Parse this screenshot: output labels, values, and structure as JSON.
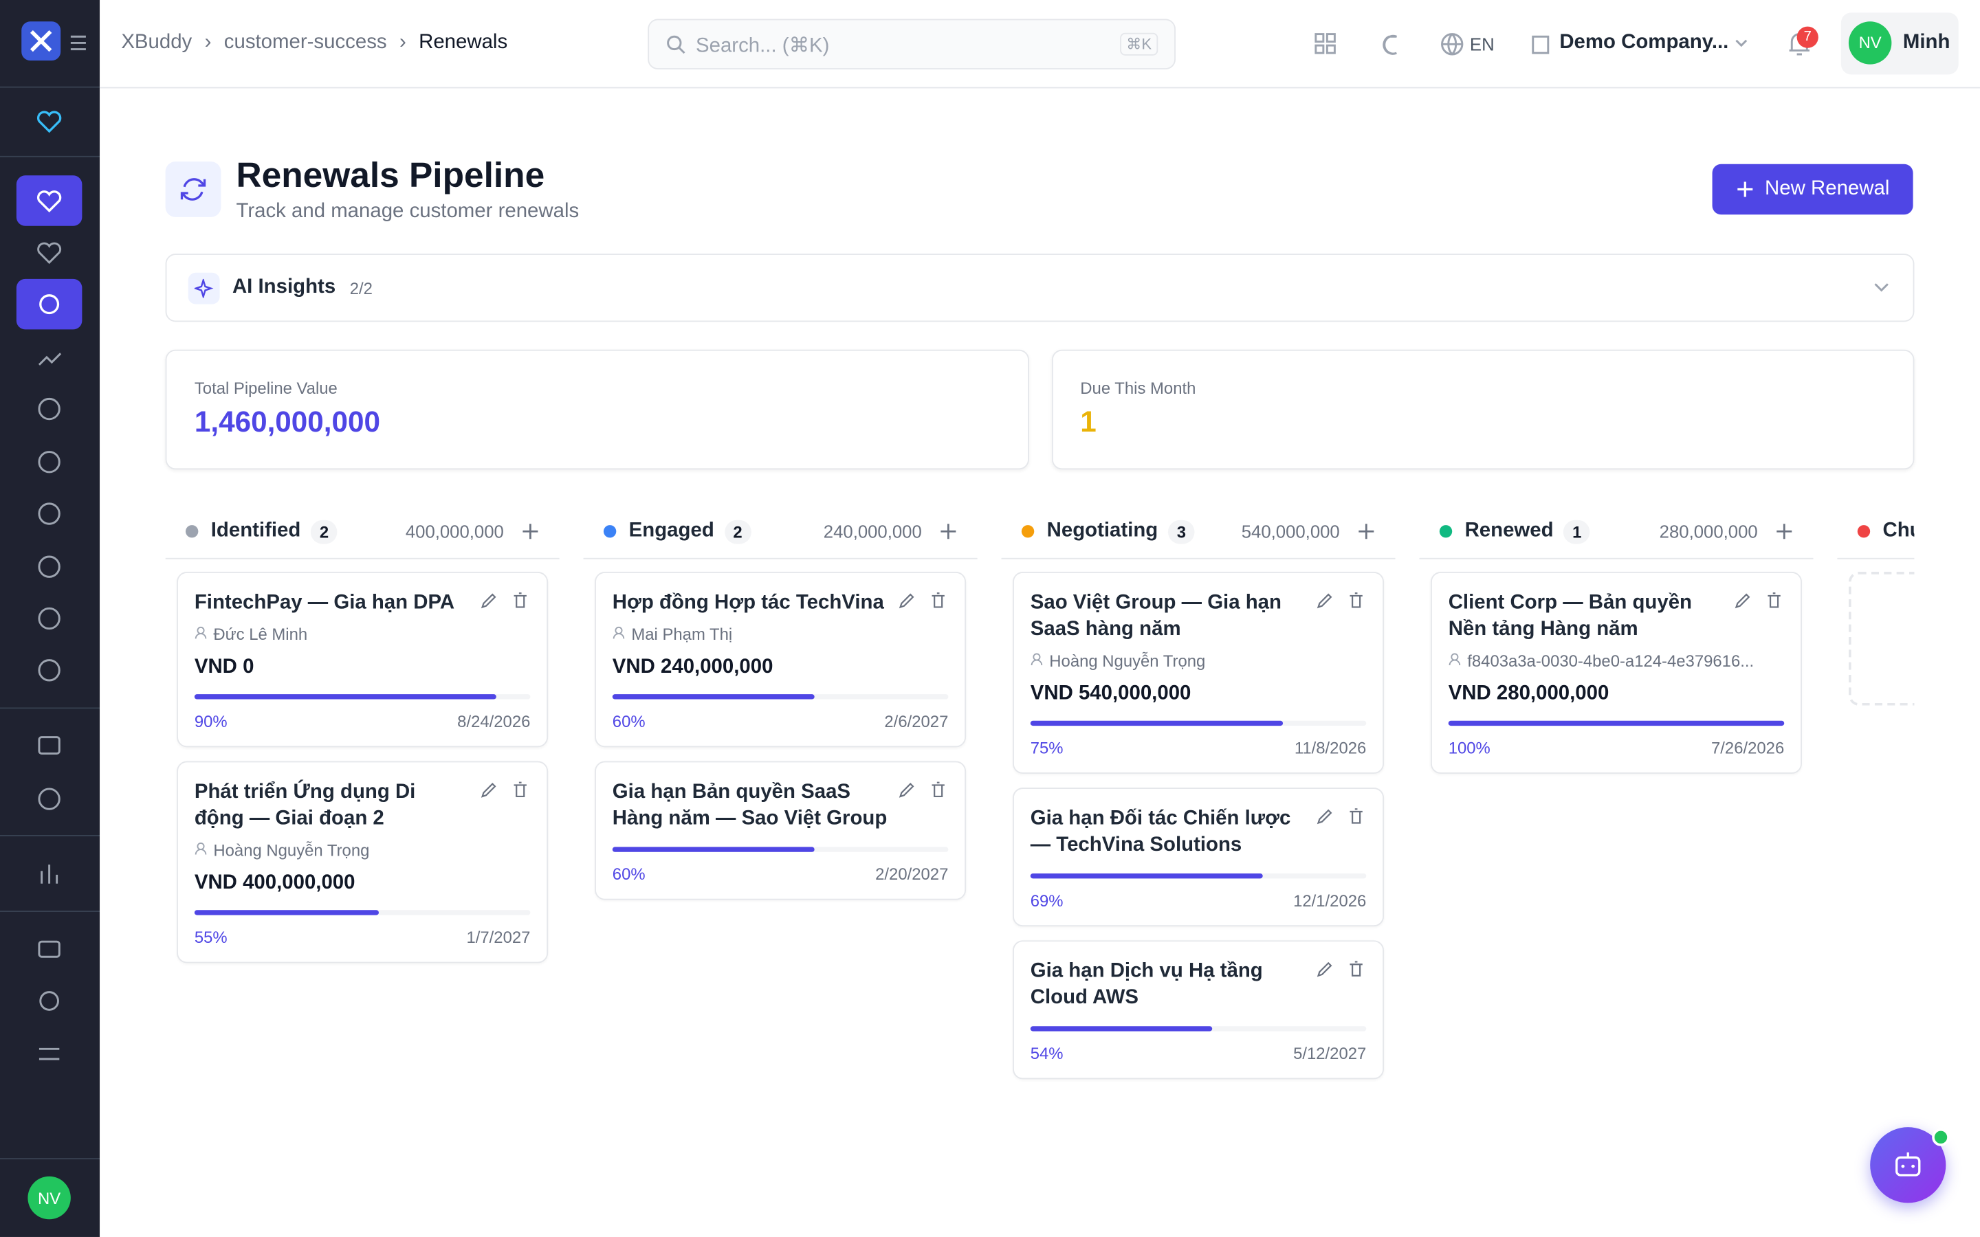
{
  "header": {
    "breadcrumbs": [
      "XBuddy",
      "customer-success",
      "Renewals"
    ],
    "search_placeholder": "Search... (⌘K)",
    "shortcut": "⌘K",
    "language": "EN",
    "company": "Demo Company...",
    "notifications": "7",
    "user_initials": "NV",
    "user_name": "Minh"
  },
  "page": {
    "title": "Renewals Pipeline",
    "subtitle": "Track and manage customer renewals",
    "new_button": "New Renewal"
  },
  "insights": {
    "label": "AI Insights",
    "count": "2/2"
  },
  "stats": [
    {
      "label": "Total Pipeline Value",
      "value": "1,460,000,000",
      "color": "#4f46e5"
    },
    {
      "label": "Due This Month",
      "value": "1",
      "color": "#eab308"
    }
  ],
  "columns": [
    {
      "name": "Identified",
      "color": "#9ca3af",
      "count": "2",
      "total": "400,000,000",
      "cards": [
        {
          "title": "FintechPay — Gia hạn DPA",
          "owner": "Đức Lê Minh",
          "amount": "VND 0",
          "progress": 90,
          "progress_label": "90%",
          "date": "8/24/2026"
        },
        {
          "title": "Phát triển Ứng dụng Di động — Giai đoạn 2",
          "owner": "Hoàng Nguyễn Trọng",
          "amount": "VND 400,000,000",
          "progress": 55,
          "progress_label": "55%",
          "date": "1/7/2027"
        }
      ]
    },
    {
      "name": "Engaged",
      "color": "#3b82f6",
      "count": "2",
      "total": "240,000,000",
      "cards": [
        {
          "title": "Hợp đồng Hợp tác TechVina",
          "owner": "Mai Phạm Thị",
          "amount": "VND 240,000,000",
          "progress": 60,
          "progress_label": "60%",
          "date": "2/6/2027"
        },
        {
          "title": "Gia hạn Bản quyền SaaS Hàng năm — Sao Việt Group",
          "progress": 60,
          "progress_label": "60%",
          "date": "2/20/2027"
        }
      ]
    },
    {
      "name": "Negotiating",
      "color": "#f59e0b",
      "count": "3",
      "total": "540,000,000",
      "cards": [
        {
          "title": "Sao Việt Group — Gia hạn SaaS hàng năm",
          "owner": "Hoàng Nguyễn Trọng",
          "amount": "VND 540,000,000",
          "progress": 75,
          "progress_label": "75%",
          "date": "11/8/2026"
        },
        {
          "title": "Gia hạn Đối tác Chiến lược — TechVina Solutions",
          "progress": 69,
          "progress_label": "69%",
          "date": "12/1/2026"
        },
        {
          "title": "Gia hạn Dịch vụ Hạ tầng Cloud AWS",
          "progress": 54,
          "progress_label": "54%",
          "date": "5/12/2027"
        }
      ]
    },
    {
      "name": "Renewed",
      "color": "#10b981",
      "count": "1",
      "total": "280,000,000",
      "cards": [
        {
          "title": "Client Corp — Bản quyền Nền tảng Hàng năm",
          "owner": "f8403a3a-0030-4be0-a124-4e379616...",
          "amount": "VND 280,000,000",
          "progress": 100,
          "progress_label": "100%",
          "date": "7/26/2026"
        }
      ]
    },
    {
      "name": "Churned",
      "color": "#ef4444",
      "cards": []
    }
  ],
  "sidebar": {
    "user_initials": "NV"
  }
}
